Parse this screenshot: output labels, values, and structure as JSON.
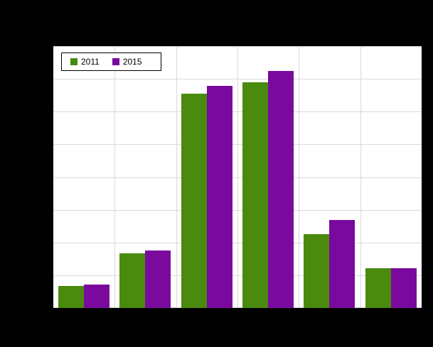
{
  "canvas": {
    "background_color": "#000000",
    "plot_background_color": "#ffffff",
    "grid_color": "#d9d9d9"
  },
  "legend": {
    "items": [
      {
        "label": "2011",
        "color": "#4a8b0f"
      },
      {
        "label": "2015",
        "color": "#7a0a9d"
      }
    ]
  },
  "chart_data": {
    "type": "bar",
    "title": "",
    "xlabel": "",
    "ylabel": "",
    "categories": [
      "",
      "",
      "",
      "",
      "",
      ""
    ],
    "series": [
      {
        "name": "2011",
        "color": "#4a8b0f",
        "values": [
          8.4,
          20.9,
          81.8,
          86.2,
          28.2,
          15.2
        ]
      },
      {
        "name": "2015",
        "color": "#7a0a9d",
        "values": [
          8.9,
          22.0,
          84.8,
          90.5,
          33.6,
          15.2
        ]
      }
    ],
    "ylim": [
      0,
      100
    ],
    "grid": true,
    "gridlines": {
      "horizontal_intervals": 8,
      "vertical_dividers": 5
    },
    "legend_position": "top-left-inside"
  }
}
